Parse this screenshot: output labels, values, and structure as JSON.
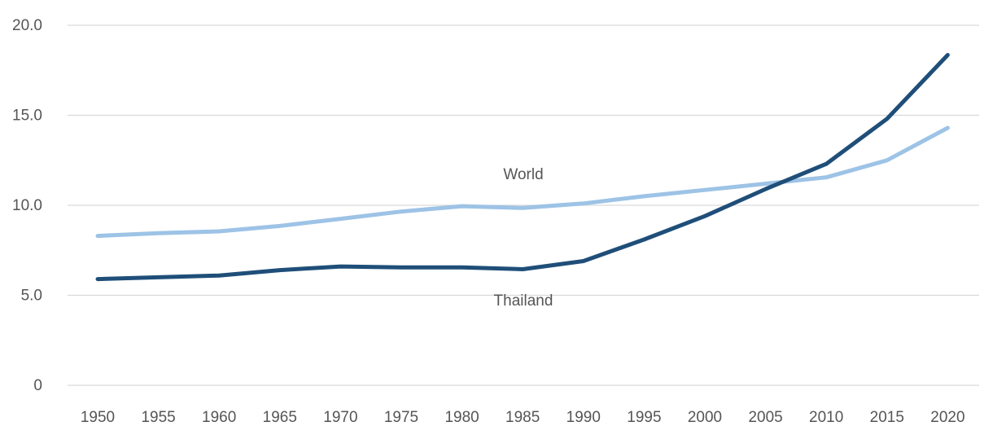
{
  "chart_data": {
    "type": "line",
    "title": "",
    "xlabel": "",
    "ylabel": "",
    "ylim": [
      0,
      20
    ],
    "yticks": [
      "0",
      "5.0",
      "10.0",
      "15.0",
      "20.0"
    ],
    "ytick_values": [
      0,
      5,
      10,
      15,
      20
    ],
    "grid": true,
    "categories": [
      "1950",
      "1955",
      "1960",
      "1965",
      "1970",
      "1975",
      "1980",
      "1985",
      "1990",
      "1995",
      "2000",
      "2005",
      "2010",
      "2015",
      "2020"
    ],
    "series": [
      {
        "name": "World",
        "color": "#9dc3e6",
        "values": [
          8.3,
          8.45,
          8.55,
          8.85,
          9.25,
          9.65,
          9.95,
          9.85,
          10.1,
          10.5,
          10.85,
          11.2,
          11.55,
          12.5,
          14.3
        ]
      },
      {
        "name": "Thailand",
        "color": "#1f4e79",
        "values": [
          5.9,
          6.0,
          6.1,
          6.4,
          6.6,
          6.55,
          6.55,
          6.45,
          6.9,
          8.1,
          9.4,
          10.9,
          12.3,
          14.8,
          18.35
        ]
      }
    ],
    "annotations": [
      {
        "series": "World",
        "text": "World"
      },
      {
        "series": "Thailand",
        "text": "Thailand"
      }
    ]
  }
}
